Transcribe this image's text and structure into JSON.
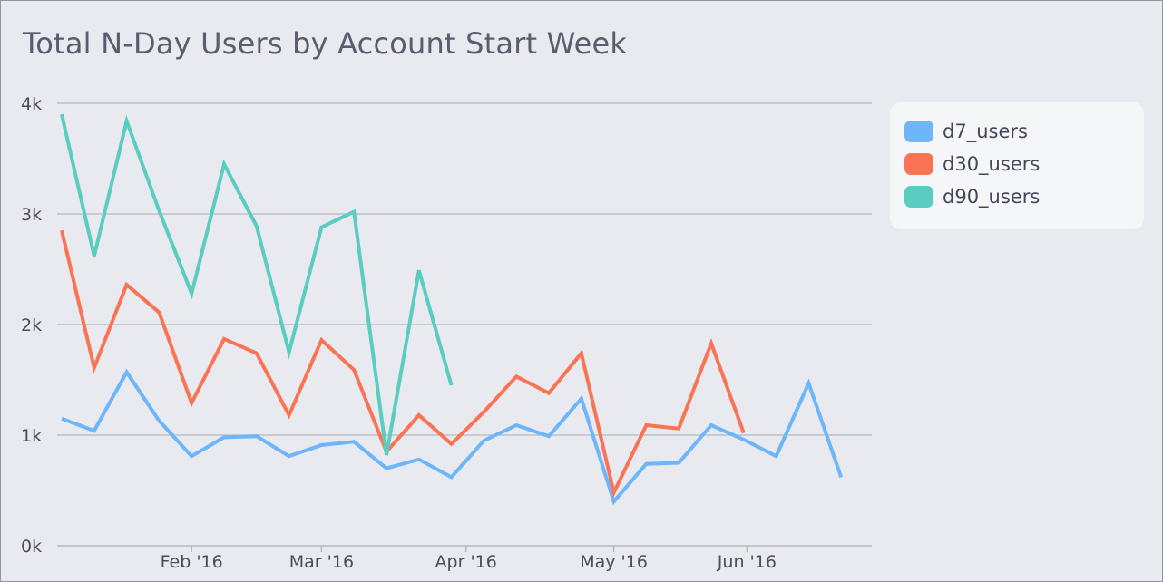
{
  "title": "Total N-Day Users by Account Start Week",
  "legend": [
    {
      "label": "d7_users",
      "color": "#6eb5fa"
    },
    {
      "label": "d30_users",
      "color": "#fa7355"
    },
    {
      "label": "d90_users",
      "color": "#5acdc0"
    }
  ],
  "chart_data": {
    "type": "line",
    "title": "Total N-Day Users by Account Start Week",
    "xlabel": "",
    "ylabel": "",
    "ylim": [
      0,
      4000
    ],
    "y_ticks": [
      0,
      1000,
      2000,
      3000,
      4000
    ],
    "y_tick_labels": [
      "0k",
      "1k",
      "2k",
      "3k",
      "4k"
    ],
    "x_tick_labels": [
      "Feb '16",
      "Mar '16",
      "Apr '16",
      "May '16",
      "Jun '16"
    ],
    "x_tick_index": [
      4,
      8,
      12.45,
      17,
      21.1
    ],
    "x": [
      0,
      1,
      2,
      3,
      4,
      5,
      6,
      7,
      8,
      9,
      10,
      11,
      12,
      13,
      14,
      15,
      16,
      17,
      18,
      19,
      20,
      21,
      22,
      23,
      24
    ],
    "series": [
      {
        "name": "d7_users",
        "color": "#6eb5fa",
        "values": [
          1150,
          1040,
          1570,
          1130,
          810,
          980,
          990,
          810,
          910,
          940,
          700,
          780,
          620,
          950,
          1090,
          990,
          1330,
          400,
          740,
          750,
          1090,
          960,
          810,
          1470,
          620
        ]
      },
      {
        "name": "d30_users",
        "color": "#fa7355",
        "values": [
          2850,
          1610,
          2360,
          2110,
          1290,
          1870,
          1740,
          1180,
          1860,
          1590,
          850,
          1180,
          920,
          1210,
          1530,
          1380,
          1740,
          480,
          1090,
          1060,
          1830,
          1020,
          null,
          null,
          null
        ]
      },
      {
        "name": "d90_users",
        "color": "#5acdc0",
        "values": [
          3900,
          2620,
          3840,
          3030,
          2280,
          3450,
          2890,
          1750,
          2880,
          3020,
          820,
          2490,
          1450,
          null,
          null,
          null,
          null,
          null,
          null,
          null,
          null,
          null,
          null,
          null,
          null
        ]
      }
    ]
  }
}
